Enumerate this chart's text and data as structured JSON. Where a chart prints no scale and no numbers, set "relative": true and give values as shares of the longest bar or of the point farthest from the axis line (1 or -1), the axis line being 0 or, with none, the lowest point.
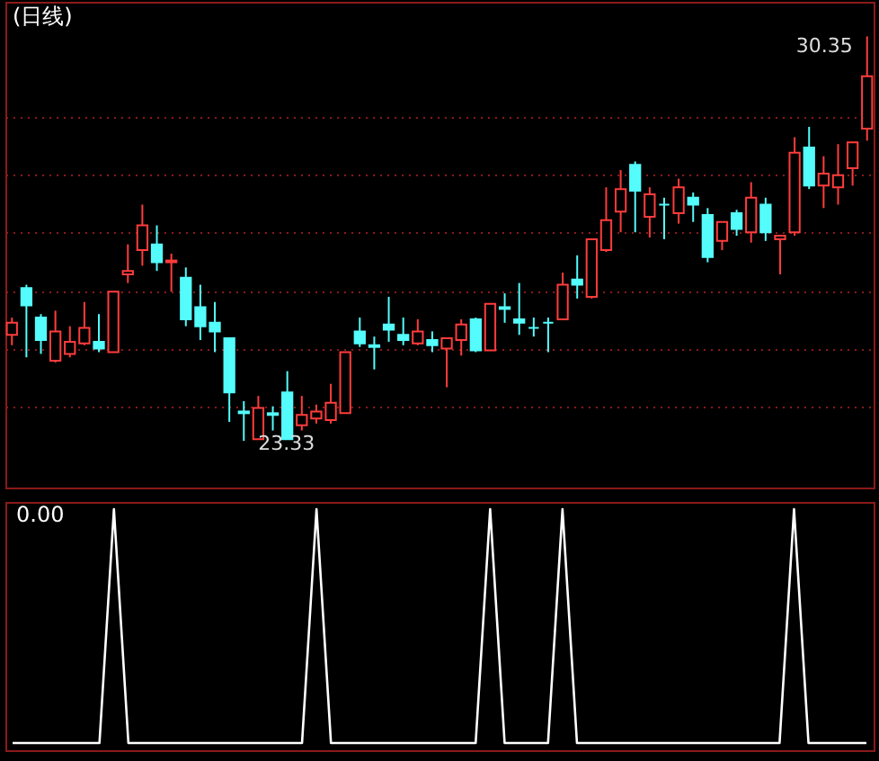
{
  "chart_data": [
    {
      "type": "candlestick",
      "title": "(日线)",
      "categories": [
        null,
        null,
        null,
        null,
        null,
        null,
        null,
        null,
        null,
        null,
        null,
        null,
        null,
        null,
        null,
        null,
        null,
        null,
        null,
        null,
        null,
        null,
        null,
        null,
        null,
        null,
        null,
        null,
        null,
        null,
        null,
        null,
        null,
        null,
        null,
        null,
        null,
        null,
        null,
        null,
        null,
        null,
        null,
        null,
        null,
        null,
        null,
        null,
        null,
        null,
        null,
        null,
        null,
        null,
        null,
        null,
        null,
        null,
        null,
        null
      ],
      "ohlc": [
        [
          25.17,
          25.47,
          24.99,
          25.38
        ],
        [
          25.98,
          26.04,
          24.78,
          25.68
        ],
        [
          25.47,
          25.53,
          24.84,
          25.08
        ],
        [
          24.72,
          25.59,
          24.69,
          25.23
        ],
        [
          24.84,
          25.32,
          24.78,
          25.05
        ],
        [
          25.02,
          25.74,
          24.99,
          25.29
        ],
        [
          25.05,
          25.53,
          24.87,
          24.93
        ],
        [
          24.87,
          25.92,
          24.87,
          25.92
        ],
        [
          26.22,
          26.74,
          26.07,
          26.28
        ],
        [
          26.64,
          27.43,
          26.37,
          27.07
        ],
        [
          26.74,
          27.07,
          26.28,
          26.43
        ],
        [
          26.43,
          26.58,
          25.92,
          26.46
        ],
        [
          26.16,
          26.34,
          25.32,
          25.44
        ],
        [
          25.65,
          26.04,
          25.08,
          25.32
        ],
        [
          25.38,
          25.74,
          24.87,
          25.23
        ],
        [
          25.11,
          25.11,
          23.66,
          24.17
        ],
        [
          23.84,
          24.02,
          23.33,
          23.81
        ],
        [
          23.36,
          24.11,
          23.36,
          23.9
        ],
        [
          23.81,
          23.93,
          23.51,
          23.78
        ],
        [
          24.17,
          24.54,
          23.36,
          23.36
        ],
        [
          23.6,
          24.11,
          23.51,
          23.78
        ],
        [
          23.72,
          23.96,
          23.63,
          23.84
        ],
        [
          23.69,
          24.32,
          23.63,
          23.99
        ],
        [
          23.81,
          24.87,
          23.81,
          24.87
        ],
        [
          25.23,
          25.47,
          24.96,
          25.02
        ],
        [
          24.99,
          25.14,
          24.57,
          24.96
        ],
        [
          25.35,
          25.83,
          25.05,
          25.26
        ],
        [
          25.17,
          25.47,
          24.99,
          25.08
        ],
        [
          25.02,
          25.44,
          24.99,
          25.23
        ],
        [
          25.08,
          25.23,
          24.87,
          24.99
        ],
        [
          24.93,
          25.11,
          24.26,
          25.11
        ],
        [
          25.08,
          25.44,
          24.81,
          25.35
        ],
        [
          25.44,
          25.47,
          24.87,
          24.9
        ],
        [
          24.9,
          25.71,
          24.9,
          25.71
        ],
        [
          25.65,
          25.89,
          25.38,
          25.62
        ],
        [
          25.44,
          26.07,
          25.17,
          25.38
        ],
        [
          25.29,
          25.47,
          25.14,
          25.29
        ],
        [
          25.38,
          25.47,
          24.87,
          25.38
        ],
        [
          25.44,
          26.25,
          25.44,
          26.04
        ],
        [
          26.13,
          26.55,
          25.8,
          26.04
        ],
        [
          25.83,
          26.83,
          25.8,
          26.83
        ],
        [
          26.64,
          27.73,
          26.61,
          27.16
        ],
        [
          27.31,
          28.03,
          26.95,
          27.7
        ],
        [
          28.12,
          28.18,
          26.95,
          27.67
        ],
        [
          27.22,
          27.73,
          26.86,
          27.61
        ],
        [
          27.43,
          27.55,
          26.83,
          27.43
        ],
        [
          27.28,
          27.88,
          27.1,
          27.73
        ],
        [
          27.55,
          27.64,
          27.13,
          27.43
        ],
        [
          27.25,
          27.37,
          26.43,
          26.52
        ],
        [
          26.8,
          27.13,
          26.64,
          27.13
        ],
        [
          27.28,
          27.34,
          26.89,
          27.01
        ],
        [
          26.95,
          27.82,
          26.77,
          27.55
        ],
        [
          27.43,
          27.55,
          26.8,
          26.95
        ],
        [
          26.83,
          26.89,
          26.22,
          26.89
        ],
        [
          26.95,
          28.6,
          26.89,
          28.33
        ],
        [
          28.42,
          28.78,
          27.7,
          27.76
        ],
        [
          27.76,
          28.27,
          27.37,
          27.97
        ],
        [
          27.73,
          28.48,
          27.43,
          27.94
        ],
        [
          28.06,
          28.51,
          27.76,
          28.51
        ],
        [
          28.75,
          30.35,
          28.54,
          29.66
        ]
      ],
      "colors": [
        "#ff3c3c",
        "#54fcfc",
        "#54fcfc",
        "#ff3c3c",
        "#ff3c3c",
        "#ff3c3c",
        "#54fcfc",
        "#ff3c3c",
        "#ff3c3c",
        "#ff3c3c",
        "#54fcfc",
        "#ff3c3c",
        "#54fcfc",
        "#54fcfc",
        "#54fcfc",
        "#54fcfc",
        "#54fcfc",
        "#ff3c3c",
        "#54fcfc",
        "#54fcfc",
        "#ff3c3c",
        "#ff3c3c",
        "#ff3c3c",
        "#ff3c3c",
        "#54fcfc",
        "#54fcfc",
        "#54fcfc",
        "#54fcfc",
        "#ff3c3c",
        "#54fcfc",
        "#ff3c3c",
        "#ff3c3c",
        "#54fcfc",
        "#ff3c3c",
        "#54fcfc",
        "#54fcfc",
        "#54fcfc",
        "#54fcfc",
        "#ff3c3c",
        "#54fcfc",
        "#ff3c3c",
        "#ff3c3c",
        "#ff3c3c",
        "#54fcfc",
        "#ff3c3c",
        "#54fcfc",
        "#ff3c3c",
        "#54fcfc",
        "#54fcfc",
        "#ff3c3c",
        "#54fcfc",
        "#ff3c3c",
        "#54fcfc",
        "#ff3c3c",
        "#ff3c3c",
        "#54fcfc",
        "#ff3c3c",
        "#ff3c3c",
        "#ff3c3c",
        "#ff3c3c"
      ],
      "ylim": [
        22.52,
        30.95
      ],
      "yticks": [
        {
          "value": 23.93,
          "label": null
        },
        {
          "value": 24.93,
          "label": null
        },
        {
          "value": 25.92,
          "label": null
        },
        {
          "value": 26.95,
          "label": null
        },
        {
          "value": 27.94,
          "label": null
        },
        {
          "value": 28.96,
          "label": null
        }
      ],
      "grid": "y",
      "tick_labels": false,
      "annotations": [
        "30.35",
        "23.33"
      ]
    },
    {
      "type": "line",
      "relative": true,
      "tick_labels": false,
      "annotations": [
        "0.00"
      ],
      "categories": [
        null,
        null,
        null,
        null,
        null,
        null,
        null,
        null,
        null,
        null,
        null,
        null,
        null,
        null,
        null,
        null,
        null,
        null,
        null,
        null,
        null,
        null,
        null,
        null,
        null,
        null,
        null,
        null,
        null,
        null,
        null,
        null,
        null,
        null,
        null,
        null,
        null,
        null,
        null,
        null,
        null,
        null,
        null,
        null,
        null,
        null,
        null,
        null,
        null,
        null,
        null,
        null,
        null,
        null,
        null,
        null,
        null,
        null,
        null,
        null
      ],
      "series": [
        {
          "color": "#ffffff",
          "values": [
            0,
            0,
            0,
            0,
            0,
            0,
            0,
            1,
            0,
            0,
            0,
            0,
            0,
            0,
            0,
            0,
            0,
            0,
            0,
            0,
            0,
            1,
            0,
            0,
            0,
            0,
            0,
            0,
            0,
            0,
            0,
            0,
            0,
            1,
            0,
            0,
            0,
            0,
            1,
            0,
            0,
            0,
            0,
            0,
            0,
            0,
            0,
            0,
            0,
            0,
            0,
            0,
            0,
            0,
            1,
            0,
            0,
            0,
            0,
            0
          ]
        }
      ]
    }
  ]
}
